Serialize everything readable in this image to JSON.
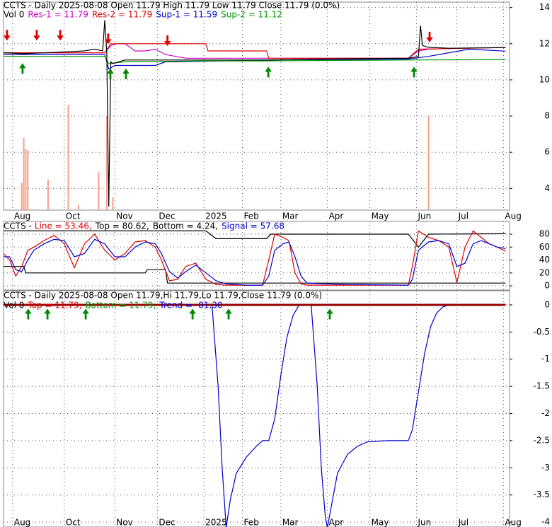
{
  "chart_data": [
    {
      "type": "line",
      "title": "CCTS - Daily 2025-08-08 Open 11.79 High 11.79 Low 11.79 Close 11.79 (0.0%)",
      "legend": [
        {
          "text": "Vol 0",
          "color": "#000000"
        },
        {
          "text": "Res-1 = 11.79",
          "color": "#cc00cc"
        },
        {
          "text": "Res-2 = 11.79",
          "color": "#dd0000"
        },
        {
          "text": "Sup-1 = 11.59",
          "color": "#0000cc"
        },
        {
          "text": "Sup-2 = 11.12",
          "color": "#009900"
        }
      ],
      "xlim": [
        0,
        250
      ],
      "xticks": [
        {
          "value": 4.5,
          "label": "Aug"
        },
        {
          "value": 30,
          "label": "Oct"
        },
        {
          "value": 55,
          "label": "Nov"
        },
        {
          "value": 76,
          "label": "Dec"
        },
        {
          "value": 99,
          "label": "2025"
        },
        {
          "value": 118,
          "label": "Feb"
        },
        {
          "value": 137,
          "label": "Mar"
        },
        {
          "value": 160,
          "label": "Apr"
        },
        {
          "value": 181,
          "label": "May"
        },
        {
          "value": 204,
          "label": "Jun"
        },
        {
          "value": 224,
          "label": "Jul"
        },
        {
          "value": 247,
          "label": "Aug"
        }
      ],
      "ylim": [
        2.8,
        14.3
      ],
      "yticks": [
        4,
        6,
        8,
        10,
        12,
        14
      ],
      "grid": true,
      "volume": {
        "color": "#f4a08a",
        "x": [
          9,
          10,
          11,
          12,
          22,
          32,
          37,
          47,
          51,
          54,
          210
        ],
        "values": [
          4.3,
          6.8,
          6.2,
          6.1,
          4.5,
          8.6,
          3.1,
          4.9,
          8.0,
          3.5,
          8.0
        ]
      },
      "series": [
        {
          "color": "#cc00cc",
          "x": [
            0,
            50,
            53,
            56,
            60,
            65,
            70,
            75,
            80,
            85,
            90,
            100,
            130,
            160,
            200,
            205,
            210,
            225,
            248
          ],
          "values": [
            11.5,
            11.5,
            11.9,
            12.0,
            12.0,
            11.6,
            11.6,
            11.7,
            11.4,
            11.3,
            11.2,
            11.2,
            11.2,
            11.2,
            11.2,
            11.6,
            11.7,
            11.75,
            11.79
          ]
        },
        {
          "color": "#dd0000",
          "x": [
            0,
            50,
            53,
            100,
            101,
            130,
            131,
            200,
            205,
            230,
            248
          ],
          "values": [
            11.5,
            11.5,
            12.0,
            12.0,
            11.6,
            11.6,
            11.2,
            11.2,
            11.7,
            11.75,
            11.79
          ]
        },
        {
          "color": "#0000cc",
          "x": [
            0,
            50,
            52,
            55,
            60,
            75,
            80,
            85,
            130,
            200,
            210,
            220,
            230,
            248
          ],
          "values": [
            11.4,
            11.4,
            10.6,
            10.8,
            10.8,
            10.8,
            11.0,
            11.0,
            11.1,
            11.15,
            11.3,
            11.5,
            11.7,
            11.59
          ]
        },
        {
          "color": "#009900",
          "x": [
            0,
            50,
            52,
            60,
            100,
            130,
            200,
            248
          ],
          "values": [
            11.3,
            11.3,
            10.9,
            11.0,
            11.05,
            11.05,
            11.1,
            11.12
          ]
        },
        {
          "color": "#000000",
          "x": [
            0,
            10,
            20,
            30,
            40,
            45,
            49,
            50,
            51,
            52,
            53,
            54,
            60,
            80,
            100,
            130,
            160,
            200,
            205,
            206,
            207,
            210,
            220,
            248
          ],
          "values": [
            11.5,
            11.45,
            11.5,
            11.55,
            11.6,
            11.7,
            11.6,
            13.3,
            11.5,
            3.0,
            11.0,
            10.9,
            11.1,
            11.1,
            11.1,
            11.1,
            11.15,
            11.2,
            11.3,
            13.0,
            11.9,
            11.8,
            11.75,
            11.79
          ]
        }
      ],
      "signals": [
        {
          "color": "#e00000",
          "direction": "down",
          "x": [
            1.7,
            16.4,
            28,
            51.7,
            81,
            210.5
          ],
          "y": [
            12.2,
            12.2,
            12.2,
            12.0,
            11.9,
            12.1
          ]
        },
        {
          "color": "#008800",
          "direction": "up",
          "x": [
            9.4,
            52.8,
            60.5,
            130.8,
            202.8
          ],
          "y": [
            10.9,
            10.6,
            10.6,
            10.7,
            10.7
          ]
        }
      ]
    },
    {
      "type": "line",
      "title": "CCTS -",
      "legend": [
        {
          "text": "Line = 53.46,",
          "color": "#dd0000"
        },
        {
          "text": "Top = 80.62,",
          "color": "#000000"
        },
        {
          "text": "Bottom = 4.24,",
          "color": "#000000"
        },
        {
          "text": "Signal = 57.68",
          "color": "#0000cc"
        }
      ],
      "xlim": [
        0,
        250
      ],
      "ylim": [
        -6.5,
        99.7
      ],
      "yticks": [
        0,
        20,
        40,
        60,
        80
      ],
      "grid": true,
      "series": [
        {
          "color": "#000000",
          "x": [
            0,
            100,
            105,
            130,
            132,
            200,
            205,
            210,
            248
          ],
          "values": [
            85,
            85,
            73,
            73,
            80,
            80,
            60,
            80,
            80.62
          ]
        },
        {
          "color": "#000000",
          "x": [
            0,
            10,
            11,
            70,
            71,
            80,
            81,
            248
          ],
          "values": [
            30,
            30,
            20,
            20,
            25,
            25,
            4.24,
            4.24
          ]
        },
        {
          "color": "#dd0000",
          "x": [
            0,
            3,
            6,
            9,
            12,
            15,
            20,
            25,
            30,
            35,
            40,
            45,
            50,
            55,
            60,
            65,
            70,
            75,
            78,
            82,
            86,
            90,
            95,
            100,
            105,
            110,
            120,
            128,
            131,
            134,
            138,
            141,
            144,
            147,
            150,
            170,
            200,
            202,
            205,
            210,
            215,
            220,
            224,
            228,
            232,
            236,
            240,
            244,
            248
          ],
          "values": [
            50,
            40,
            15,
            30,
            55,
            60,
            70,
            78,
            65,
            28,
            65,
            80,
            55,
            40,
            50,
            68,
            70,
            60,
            40,
            8,
            10,
            30,
            35,
            10,
            2,
            1,
            1,
            1,
            40,
            80,
            75,
            70,
            20,
            3,
            1,
            1,
            1,
            30,
            85,
            75,
            70,
            60,
            5,
            60,
            85,
            75,
            65,
            60,
            53.46
          ]
        },
        {
          "color": "#0000cc",
          "x": [
            0,
            3,
            6,
            9,
            12,
            15,
            20,
            25,
            30,
            35,
            40,
            45,
            50,
            55,
            60,
            65,
            70,
            75,
            78,
            82,
            86,
            90,
            95,
            100,
            105,
            110,
            120,
            128,
            131,
            134,
            138,
            141,
            144,
            147,
            150,
            170,
            200,
            202,
            205,
            210,
            215,
            220,
            224,
            228,
            232,
            236,
            240,
            244,
            248
          ],
          "values": [
            45,
            45,
            25,
            22,
            40,
            55,
            65,
            72,
            70,
            45,
            50,
            72,
            65,
            45,
            45,
            60,
            68,
            65,
            50,
            22,
            12,
            22,
            32,
            20,
            8,
            3,
            1,
            1,
            15,
            55,
            65,
            68,
            45,
            15,
            4,
            2,
            1,
            10,
            55,
            68,
            70,
            65,
            30,
            35,
            65,
            70,
            65,
            60,
            57.68
          ]
        }
      ]
    },
    {
      "type": "line",
      "title": "CCTS - Daily 2025-08-08 Open 11.79,Hi 11.79,Lo 11.79,Close 11.79 (0.0%)",
      "legend": [
        {
          "text": "Vol 0",
          "color": "#000000"
        },
        {
          "text": "Top = 11.79,",
          "color": "#dd0000"
        },
        {
          "text": "Bottom = 11.79,",
          "color": "#009900"
        },
        {
          "text": "Trend = -81.30",
          "color": "#0000cc"
        }
      ],
      "xlim": [
        0,
        250
      ],
      "xticks": [
        {
          "value": 4.5,
          "label": "Aug"
        },
        {
          "value": 30,
          "label": "Oct"
        },
        {
          "value": 55,
          "label": "Nov"
        },
        {
          "value": 76,
          "label": "Dec"
        },
        {
          "value": 99,
          "label": "2025"
        },
        {
          "value": 118,
          "label": "Feb"
        },
        {
          "value": 137,
          "label": "Mar"
        },
        {
          "value": 160,
          "label": "Apr"
        },
        {
          "value": 181,
          "label": "May"
        },
        {
          "value": 204,
          "label": "Jun"
        },
        {
          "value": 224,
          "label": "Jul"
        },
        {
          "value": 247,
          "label": "Aug"
        }
      ],
      "ylim": [
        -4.09,
        0.26
      ],
      "yticks": [
        0,
        -0.5,
        -1,
        -1.5,
        -2,
        -2.5,
        -3,
        -3.5,
        -4
      ],
      "grid": true,
      "series": [
        {
          "color": "#0000cc",
          "x": [
            0,
            103,
            106,
            108,
            110,
            112,
            115,
            120,
            125,
            128,
            131,
            134,
            137,
            140,
            143,
            146,
            152,
            155,
            157,
            159,
            160,
            162,
            165,
            170,
            175,
            180,
            190,
            200,
            202,
            205,
            208,
            211,
            214,
            217,
            220,
            248
          ],
          "values": [
            0,
            0,
            -1.5,
            -3,
            -4.1,
            -3.6,
            -3.1,
            -2.8,
            -2.6,
            -2.5,
            -2.5,
            -2.1,
            -1.3,
            -0.6,
            -0.2,
            0,
            0,
            -1.5,
            -3,
            -3.9,
            -4.1,
            -3.7,
            -3.1,
            -2.75,
            -2.6,
            -2.52,
            -2.5,
            -2.5,
            -2.3,
            -1.6,
            -0.9,
            -0.4,
            -0.15,
            -0.04,
            0,
            0
          ]
        },
        {
          "color": "#990000",
          "x": [
            0,
            248
          ],
          "values": [
            0,
            0
          ]
        }
      ],
      "signals": [
        {
          "color": "#008800",
          "direction": "up",
          "x": [
            12.2,
            21.7,
            40.6,
            93.4,
            111.2,
            161.2
          ],
          "y": [
            -0.08,
            -0.08,
            -0.08,
            -0.08,
            -0.08,
            -0.08
          ]
        }
      ]
    }
  ]
}
